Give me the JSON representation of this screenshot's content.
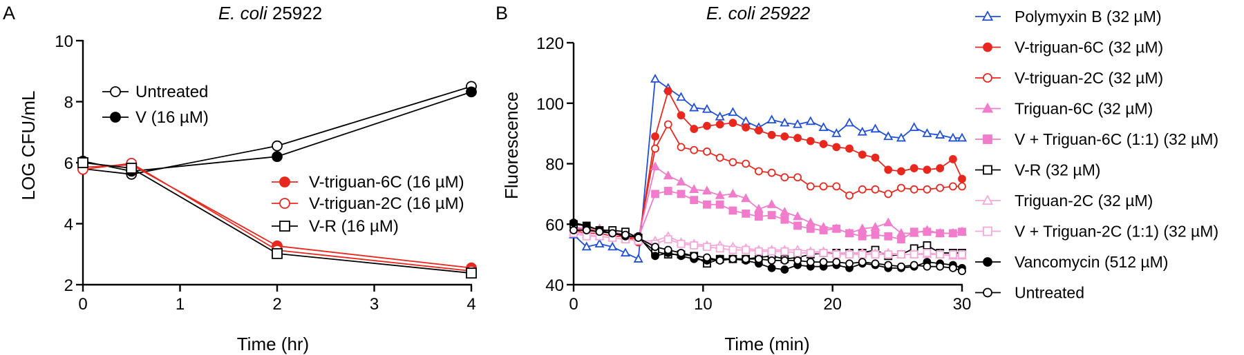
{
  "panels": {
    "a": {
      "label": "A"
    },
    "b": {
      "label": "B"
    }
  },
  "chart_data": [
    {
      "type": "line",
      "title_italic": "E. coli",
      "title_rest": " 25922",
      "xlabel": "Time (hr)",
      "ylabel": "LOG CFU/mL",
      "xlim": [
        0,
        4
      ],
      "ylim": [
        2,
        10
      ],
      "xticks": [
        0,
        1,
        2,
        3,
        4
      ],
      "yticks": [
        2,
        4,
        6,
        8,
        10
      ],
      "grid": false,
      "series": [
        {
          "name": "Untreated",
          "color": "#000000",
          "marker": "circle",
          "fill": "open",
          "x": [
            0,
            0.5,
            2,
            4
          ],
          "y": [
            5.8,
            5.62,
            6.55,
            8.5
          ]
        },
        {
          "name": "V (16 µM)",
          "color": "#000000",
          "marker": "circle",
          "fill": "filled",
          "x": [
            0,
            0.5,
            2,
            4
          ],
          "y": [
            6.05,
            5.72,
            6.2,
            8.32
          ]
        },
        {
          "name": "V-triguan-6C (16 µM)",
          "color": "#E8281E",
          "marker": "circle",
          "fill": "filled",
          "x": [
            0,
            0.5,
            2,
            4
          ],
          "y": [
            5.85,
            5.93,
            3.27,
            2.55
          ]
        },
        {
          "name": "V-triguan-2C (16 µM)",
          "color": "#E8281E",
          "marker": "circle",
          "fill": "open",
          "x": [
            0,
            0.5,
            2,
            4
          ],
          "y": [
            5.78,
            5.98,
            3.13,
            2.45
          ]
        },
        {
          "name": "V-R (16 µM)",
          "color": "#000000",
          "marker": "square",
          "fill": "open",
          "x": [
            0,
            0.5,
            2,
            4
          ],
          "y": [
            6.0,
            5.82,
            3.02,
            2.38
          ]
        }
      ]
    },
    {
      "type": "line",
      "title": "E. coli 25922",
      "xlabel": "Time (min)",
      "ylabel": "Fluorescence",
      "xlim": [
        0,
        30
      ],
      "ylim": [
        40,
        120
      ],
      "xticks": [
        0,
        10,
        20,
        30
      ],
      "yticks": [
        40,
        60,
        80,
        100,
        120
      ],
      "grid": false,
      "x": [
        0,
        1,
        2,
        3,
        4,
        5,
        6.3,
        7.3,
        8.3,
        9.3,
        10.3,
        11.3,
        12.3,
        13.3,
        14.3,
        15.3,
        16.3,
        17.3,
        18.3,
        19.3,
        20.3,
        21.3,
        22.3,
        23.3,
        24.3,
        25.3,
        26.3,
        27.3,
        28.3,
        29.3,
        30.0
      ],
      "series": [
        {
          "name": "Polymyxin B (32 µM)",
          "color": "#1F4FD8",
          "marker": "triangle",
          "fill": "open",
          "y": [
            56.5,
            52.5,
            53.5,
            52.5,
            50.5,
            48.5,
            108,
            105,
            102,
            98.5,
            98,
            95.5,
            97,
            94,
            92,
            94.5,
            93.5,
            93,
            94,
            92,
            90,
            93.5,
            90.5,
            91.5,
            89,
            88.5,
            92,
            90,
            89.5,
            88.5,
            88.5
          ]
        },
        {
          "name": "V-triguan-6C (32 µM)",
          "color": "#E8281E",
          "marker": "circle",
          "fill": "filled",
          "y": [
            58,
            57,
            57,
            56,
            56,
            54,
            89,
            104,
            96,
            91.5,
            92.5,
            93,
            93.5,
            92,
            91,
            89.5,
            89,
            88.5,
            87.5,
            86.5,
            85.5,
            85,
            83,
            82,
            78,
            77.5,
            78.5,
            78,
            78.5,
            81.5,
            75
          ]
        },
        {
          "name": "V-triguan-2C (32 µM)",
          "color": "#E8281E",
          "marker": "circle",
          "fill": "open",
          "y": [
            58.5,
            58.5,
            57.5,
            57.5,
            56,
            55,
            85,
            93,
            85.5,
            84.5,
            84,
            82,
            80.5,
            80,
            77.5,
            77,
            75.5,
            75.5,
            72.5,
            72.5,
            72.5,
            69.5,
            71.5,
            71.5,
            70,
            72,
            71.5,
            71.5,
            72,
            72.5,
            72.5
          ]
        },
        {
          "name": "Triguan-6C (32 µM)",
          "color": "#F07CCB",
          "marker": "triangle",
          "fill": "filled",
          "y": [
            59,
            58.5,
            58.5,
            57.5,
            56.5,
            55.5,
            79,
            76,
            74,
            71.5,
            71,
            69.5,
            70,
            68.5,
            65,
            66.5,
            64,
            62.5,
            60.5,
            59,
            58.5,
            57,
            58.5,
            59,
            60.5,
            57,
            57,
            58,
            57,
            57,
            57.5
          ]
        },
        {
          "name": "V + Triguan-6C (1:1) (32 µM)",
          "color": "#F07CCB",
          "marker": "square",
          "fill": "filled",
          "y": [
            58.5,
            58,
            57.5,
            57.5,
            56.5,
            55.5,
            70,
            71,
            70,
            68,
            66.5,
            66.5,
            64.5,
            63.5,
            62.5,
            63,
            61.5,
            59.5,
            58.5,
            58,
            58.5,
            57,
            56,
            56.5,
            56,
            55,
            57.5,
            57.5,
            57,
            57,
            57.5
          ]
        },
        {
          "name": "V-R (32 µM)",
          "color": "#000000",
          "marker": "square",
          "fill": "open",
          "y": [
            60,
            59.5,
            58,
            58,
            57.5,
            55.5,
            51,
            50,
            50,
            49.5,
            47,
            48.5,
            48.5,
            48.5,
            49,
            49.5,
            48.5,
            49,
            50,
            50.5,
            50.5,
            50.5,
            50.5,
            51.5,
            49.5,
            50,
            52,
            53,
            50.5,
            50.5,
            50.5
          ]
        },
        {
          "name": "Triguan-2C (32 µM)",
          "color": "#F7A8DA",
          "marker": "triangle",
          "fill": "open",
          "y": [
            57.5,
            56.5,
            56,
            55.5,
            55,
            54.5,
            54.5,
            56,
            54,
            53.5,
            53,
            53,
            52.5,
            52,
            51.5,
            51.5,
            51.5,
            51.5,
            51,
            51,
            50.5,
            50.5,
            50.5,
            50.5,
            50.5,
            50,
            50,
            50,
            50,
            49.5,
            49.5
          ]
        },
        {
          "name": "V + Triguan-2C (1:1) (32 µM)",
          "color": "#F7A8DA",
          "marker": "square",
          "fill": "open",
          "y": [
            57,
            56,
            56,
            55.5,
            55,
            54.5,
            53.5,
            55,
            53.5,
            53,
            52.5,
            52,
            51.5,
            51.5,
            51,
            51,
            51,
            50.5,
            50.5,
            50.5,
            50,
            50,
            50,
            50,
            50,
            50,
            50,
            50.5,
            50,
            50,
            50
          ]
        },
        {
          "name": "Vancomycin (512 µM)",
          "color": "#000000",
          "marker": "circle",
          "fill": "filled",
          "y": [
            60.5,
            59.5,
            58,
            57,
            56,
            56,
            49.5,
            50.5,
            49.5,
            48.5,
            48,
            48.5,
            48.5,
            48,
            47,
            45.5,
            45,
            46.5,
            46,
            46,
            46.5,
            45.5,
            47,
            46.5,
            45.5,
            45.5,
            46,
            47.5,
            47,
            46.5,
            45.5
          ]
        },
        {
          "name": "Untreated",
          "color": "#000000",
          "marker": "circle",
          "fill": "open",
          "y": [
            58,
            58,
            57.5,
            57,
            56.5,
            55.5,
            52.5,
            51.5,
            50.5,
            49.5,
            49,
            48,
            48.5,
            48.5,
            48.5,
            48,
            48,
            48,
            47.5,
            47.5,
            47.5,
            47,
            47.5,
            47,
            46.5,
            46,
            46.5,
            46,
            46,
            45.5,
            44.5
          ]
        }
      ]
    }
  ]
}
